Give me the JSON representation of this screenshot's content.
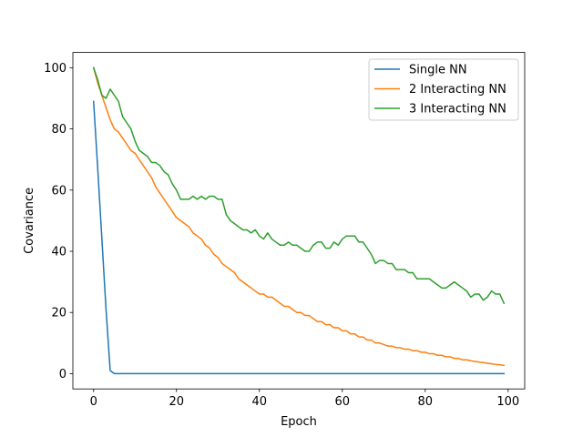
{
  "chart_data": {
    "type": "line",
    "title": "",
    "xlabel": "Epoch",
    "ylabel": "Covariance",
    "xlim": [
      -5,
      104
    ],
    "ylim": [
      -5,
      105
    ],
    "xticks": [
      0,
      20,
      40,
      60,
      80,
      100
    ],
    "yticks": [
      0,
      20,
      40,
      60,
      80,
      100
    ],
    "grid": false,
    "legend_position": "top-right",
    "series": [
      {
        "name": "Single NN",
        "color": "#1f77b4",
        "x": [
          0,
          1,
          2,
          3,
          4,
          5,
          6,
          7,
          8,
          9,
          10,
          11,
          12,
          13,
          14,
          15,
          16,
          17,
          18,
          19,
          20,
          21,
          22,
          23,
          24,
          25,
          26,
          27,
          28,
          29,
          30,
          31,
          32,
          33,
          34,
          35,
          36,
          37,
          38,
          39,
          40,
          41,
          42,
          43,
          44,
          45,
          46,
          47,
          48,
          49,
          50,
          51,
          52,
          53,
          54,
          55,
          56,
          57,
          58,
          59,
          60,
          61,
          62,
          63,
          64,
          65,
          66,
          67,
          68,
          69,
          70,
          71,
          72,
          73,
          74,
          75,
          76,
          77,
          78,
          79,
          80,
          81,
          82,
          83,
          84,
          85,
          86,
          87,
          88,
          89,
          90,
          91,
          92,
          93,
          94,
          95,
          96,
          97,
          98,
          99
        ],
        "y": [
          89,
          67,
          44,
          21,
          1,
          0,
          0,
          0,
          0,
          0,
          0,
          0,
          0,
          0,
          0,
          0,
          0,
          0,
          0,
          0,
          0,
          0,
          0,
          0,
          0,
          0,
          0,
          0,
          0,
          0,
          0,
          0,
          0,
          0,
          0,
          0,
          0,
          0,
          0,
          0,
          0,
          0,
          0,
          0,
          0,
          0,
          0,
          0,
          0,
          0,
          0,
          0,
          0,
          0,
          0,
          0,
          0,
          0,
          0,
          0,
          0,
          0,
          0,
          0,
          0,
          0,
          0,
          0,
          0,
          0,
          0,
          0,
          0,
          0,
          0,
          0,
          0,
          0,
          0,
          0,
          0,
          0,
          0,
          0,
          0,
          0,
          0,
          0,
          0,
          0,
          0,
          0,
          0,
          0,
          0,
          0,
          0,
          0,
          0,
          0
        ]
      },
      {
        "name": "2 Interacting NN",
        "color": "#ff7f0e",
        "x": [
          0,
          1,
          2,
          3,
          4,
          5,
          6,
          7,
          8,
          9,
          10,
          11,
          12,
          13,
          14,
          15,
          16,
          17,
          18,
          19,
          20,
          21,
          22,
          23,
          24,
          25,
          26,
          27,
          28,
          29,
          30,
          31,
          32,
          33,
          34,
          35,
          36,
          37,
          38,
          39,
          40,
          41,
          42,
          43,
          44,
          45,
          46,
          47,
          48,
          49,
          50,
          51,
          52,
          53,
          54,
          55,
          56,
          57,
          58,
          59,
          60,
          61,
          62,
          63,
          64,
          65,
          66,
          67,
          68,
          69,
          70,
          71,
          72,
          73,
          74,
          75,
          76,
          77,
          78,
          79,
          80,
          81,
          82,
          83,
          84,
          85,
          86,
          87,
          88,
          89,
          90,
          91,
          92,
          93,
          94,
          95,
          96,
          97,
          98,
          99
        ],
        "y": [
          100,
          95,
          91,
          87,
          83,
          80,
          79,
          77,
          75,
          73,
          72,
          70,
          68,
          66,
          64,
          61,
          59,
          57,
          55,
          53,
          51,
          50,
          49,
          48,
          46,
          45,
          44,
          42,
          41,
          39,
          38,
          36,
          35,
          34,
          33,
          31,
          30,
          29,
          28,
          27,
          26,
          26,
          25,
          25,
          24,
          23,
          22,
          22,
          21,
          20,
          20,
          19,
          19,
          18,
          17,
          17,
          16,
          16,
          15,
          15,
          14,
          14,
          13,
          13,
          12,
          12,
          11,
          11,
          10,
          10,
          9.5,
          9,
          9,
          8.5,
          8.5,
          8,
          8,
          7.5,
          7.5,
          7,
          7,
          6.5,
          6.5,
          6,
          6,
          5.5,
          5.5,
          5,
          5,
          4.5,
          4.5,
          4.2,
          4,
          3.8,
          3.6,
          3.4,
          3.2,
          3,
          2.9,
          2.7
        ]
      },
      {
        "name": "3 Interacting NN",
        "color": "#2ca02c",
        "x": [
          0,
          1,
          2,
          3,
          4,
          5,
          6,
          7,
          8,
          9,
          10,
          11,
          12,
          13,
          14,
          15,
          16,
          17,
          18,
          19,
          20,
          21,
          22,
          23,
          24,
          25,
          26,
          27,
          28,
          29,
          30,
          31,
          32,
          33,
          34,
          35,
          36,
          37,
          38,
          39,
          40,
          41,
          42,
          43,
          44,
          45,
          46,
          47,
          48,
          49,
          50,
          51,
          52,
          53,
          54,
          55,
          56,
          57,
          58,
          59,
          60,
          61,
          62,
          63,
          64,
          65,
          66,
          67,
          68,
          69,
          70,
          71,
          72,
          73,
          74,
          75,
          76,
          77,
          78,
          79,
          80,
          81,
          82,
          83,
          84,
          85,
          86,
          87,
          88,
          89,
          90,
          91,
          92,
          93,
          94,
          95,
          96,
          97,
          98,
          99
        ],
        "y": [
          100,
          96,
          91,
          90,
          93,
          91,
          89,
          84,
          82,
          80,
          76,
          73,
          72,
          71,
          69,
          69,
          68,
          66,
          65,
          62,
          60,
          57,
          57,
          57,
          58,
          57,
          58,
          57,
          58,
          58,
          57,
          57,
          52,
          50,
          49,
          48,
          47,
          47,
          46,
          47,
          45,
          44,
          46,
          44,
          43,
          42,
          42,
          43,
          42,
          42,
          41,
          40,
          40,
          42,
          43,
          43,
          41,
          41,
          43,
          42,
          44,
          45,
          45,
          45,
          43,
          43,
          41,
          39,
          36,
          37,
          37,
          36,
          36,
          34,
          34,
          34,
          33,
          33,
          31,
          31,
          31,
          31,
          30,
          29,
          28,
          28,
          29,
          30,
          29,
          28,
          27,
          25,
          26,
          26,
          24,
          25,
          27,
          26,
          26,
          23
        ]
      }
    ]
  }
}
